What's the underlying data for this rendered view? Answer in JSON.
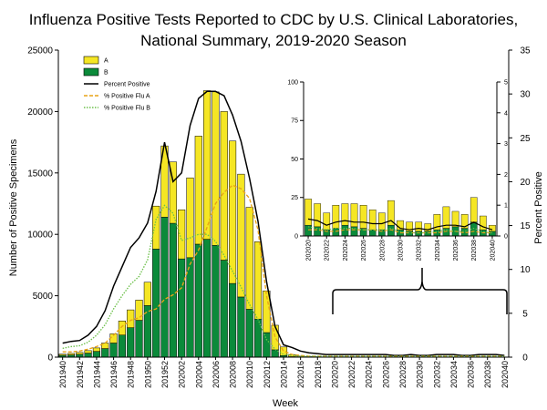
{
  "chart_data": [
    {
      "type": "bar",
      "stacked": true,
      "title_lines": [
        "Influenza Positive Tests Reported to CDC by U.S. Clinical Laboratories,",
        "National Summary,  2019-2020 Season"
      ],
      "xlabel": "Week",
      "ylabel": "Number of Positive Specimens",
      "y2label": "Percent Positive",
      "ylim": [
        0,
        25000
      ],
      "y_ticks": [
        0,
        5000,
        10000,
        15000,
        20000,
        25000
      ],
      "y2lim": [
        0,
        35
      ],
      "y2_ticks": [
        0,
        5,
        10,
        15,
        20,
        25,
        30,
        35
      ],
      "legend_position": "top-left",
      "x_tick_labels": [
        "201940",
        "201942",
        "201944",
        "201946",
        "201948",
        "201950",
        "201952",
        "202002",
        "202004",
        "202006",
        "202008",
        "202010",
        "202012",
        "202014",
        "202016",
        "202018",
        "202020",
        "202022",
        "202024",
        "202026",
        "202028",
        "202030",
        "202032",
        "202034",
        "202036",
        "202038",
        "202040"
      ],
      "categories": [
        "201940",
        "201941",
        "201942",
        "201943",
        "201944",
        "201945",
        "201946",
        "201947",
        "201948",
        "201949",
        "201950",
        "201951",
        "201952",
        "202001",
        "202002",
        "202003",
        "202004",
        "202005",
        "202006",
        "202007",
        "202008",
        "202009",
        "202010",
        "202011",
        "202012",
        "202013",
        "202014",
        "202015",
        "202016",
        "202017",
        "202018",
        "202019",
        "202020",
        "202021",
        "202022",
        "202023",
        "202024",
        "202025",
        "202026",
        "202027",
        "202028",
        "202029",
        "202030",
        "202031",
        "202032",
        "202033",
        "202034",
        "202035",
        "202036",
        "202037",
        "202038",
        "202039",
        "202040"
      ],
      "series": [
        {
          "name": "B",
          "color": "#0b8a3a",
          "kind": "bar",
          "values": [
            150,
            180,
            230,
            330,
            470,
            700,
            1150,
            1800,
            2400,
            3000,
            4200,
            8800,
            11400,
            10900,
            8000,
            8100,
            9200,
            9600,
            9100,
            7900,
            6000,
            4900,
            3900,
            3100,
            2000,
            600,
            130,
            40,
            20,
            10,
            8,
            5,
            4,
            4,
            3,
            3,
            3,
            3,
            3,
            3,
            3,
            3,
            3,
            3,
            3,
            3,
            3,
            3,
            3,
            3,
            3,
            3,
            2
          ]
        },
        {
          "name": "A",
          "color": "#f5e624",
          "kind": "bar",
          "values": [
            100,
            120,
            150,
            200,
            280,
            450,
            750,
            1150,
            1450,
            1650,
            1900,
            3500,
            5800,
            5000,
            4000,
            6500,
            8800,
            12100,
            12500,
            12100,
            11600,
            10000,
            8300,
            6300,
            3400,
            2000,
            700,
            170,
            60,
            30,
            25,
            20,
            20,
            20,
            15,
            15,
            15,
            15,
            15,
            15,
            15,
            15,
            15,
            15,
            15,
            15,
            15,
            15,
            15,
            15,
            15,
            15,
            10
          ]
        },
        {
          "name": "Percent Positive",
          "color": "#000000",
          "kind": "line",
          "axis": "right",
          "values": [
            1.6,
            1.8,
            1.9,
            2.5,
            3.5,
            5.3,
            8.1,
            10.3,
            12.5,
            13.6,
            15.3,
            18.9,
            24.5,
            20.0,
            21.0,
            26.4,
            29.5,
            30.3,
            30.3,
            29.8,
            27.6,
            24.6,
            20.4,
            15.5,
            8.6,
            3.5,
            1.4,
            1.1,
            0.7,
            0.5,
            0.4,
            0.3,
            0.3,
            0.3,
            0.3,
            0.3,
            0.3,
            0.3,
            0.3,
            0.2,
            0.2,
            0.3,
            0.2,
            0.2,
            0.3,
            0.3,
            0.3,
            0.2,
            0.2,
            0.3,
            0.3,
            0.3,
            0.2
          ]
        },
        {
          "name": "% Positive Flu A",
          "color": "#e8a317",
          "kind": "line",
          "dash": "dashed",
          "axis": "right",
          "values": [
            0.6,
            0.6,
            0.7,
            0.9,
            1.2,
            1.6,
            2.5,
            3.5,
            4.2,
            4.5,
            5.2,
            5.5,
            6.6,
            7.1,
            7.9,
            10.6,
            12.2,
            14.8,
            17.5,
            18.8,
            19.6,
            19.2,
            18.1,
            14.5,
            7.0,
            2.3,
            0.7,
            0.3,
            0.2,
            0.1,
            0.1,
            0.1,
            0.1,
            0.1,
            0.1,
            0.1,
            0.1,
            0.1,
            0.1,
            0.1,
            0.1,
            0.1,
            0.1,
            0.1,
            0.1,
            0.1,
            0.1,
            0.1,
            0.1,
            0.1,
            0.1,
            0.1,
            0.1
          ]
        },
        {
          "name": "% Positive Flu B",
          "color": "#6cc04a",
          "kind": "line",
          "dash": "dotted",
          "axis": "right",
          "values": [
            1.0,
            1.2,
            1.3,
            1.7,
            2.5,
            3.7,
            5.5,
            7.0,
            8.3,
            9.2,
            11.1,
            15.7,
            17.3,
            16.4,
            13.3,
            13.6,
            14.0,
            14.0,
            13.2,
            11.6,
            9.8,
            8.0,
            6.0,
            4.3,
            2.0,
            0.9,
            0.3,
            0.2,
            0.1,
            0.1,
            0.1,
            0.1,
            0.1,
            0.1,
            0.1,
            0.1,
            0.1,
            0.1,
            0.1,
            0.1,
            0.1,
            0.1,
            0.1,
            0.1,
            0.1,
            0.1,
            0.1,
            0.1,
            0.1,
            0.1,
            0.1,
            0.1,
            0.1
          ]
        }
      ]
    },
    {
      "type": "bar",
      "stacked": true,
      "role": "inset zoom of weeks 202020-202040",
      "ylim": [
        0,
        100
      ],
      "y_ticks": [
        0,
        25,
        50,
        75,
        100
      ],
      "y2lim": [
        0,
        5
      ],
      "y2_ticks": [
        0,
        1,
        2,
        3,
        4,
        5
      ],
      "x_tick_labels": [
        "202020",
        "202022",
        "202024",
        "202026",
        "202028",
        "202030",
        "202032",
        "202034",
        "202036",
        "202038",
        "202040"
      ],
      "categories": [
        "202020",
        "202021",
        "202022",
        "202023",
        "202024",
        "202025",
        "202026",
        "202027",
        "202028",
        "202029",
        "202030",
        "202031",
        "202032",
        "202033",
        "202034",
        "202035",
        "202036",
        "202037",
        "202038",
        "202039",
        "202040"
      ],
      "series": [
        {
          "name": "B",
          "color": "#0b8a3a",
          "kind": "bar",
          "values": [
            7,
            6,
            4,
            5,
            7,
            6,
            5,
            4,
            4,
            7,
            4,
            3,
            3,
            3,
            4,
            5,
            6,
            5,
            9,
            4,
            3
          ]
        },
        {
          "name": "A",
          "color": "#f5e624",
          "kind": "bar",
          "values": [
            17,
            15,
            11,
            15,
            14,
            15,
            15,
            13,
            11,
            16,
            6,
            6,
            6,
            5,
            10,
            14,
            10,
            9,
            16,
            9,
            4
          ]
        },
        {
          "name": "Percent Positive",
          "color": "#000000",
          "kind": "line",
          "axis": "right",
          "values": [
            0.55,
            0.5,
            0.35,
            0.45,
            0.5,
            0.45,
            0.45,
            0.4,
            0.4,
            0.5,
            0.25,
            0.2,
            0.25,
            0.2,
            0.3,
            0.35,
            0.35,
            0.3,
            0.45,
            0.3,
            0.2
          ]
        },
        {
          "name": "% Positive Flu A",
          "color": "#e8a317",
          "kind": "line",
          "dash": "dashed",
          "axis": "right",
          "values": [
            0.2,
            0.2,
            0.15,
            0.15,
            0.2,
            0.2,
            0.2,
            0.2,
            0.15,
            0.2,
            0.1,
            0.1,
            0.1,
            0.1,
            0.1,
            0.15,
            0.15,
            0.1,
            0.15,
            0.1,
            0.1
          ]
        },
        {
          "name": "% Positive Flu B",
          "color": "#6cc04a",
          "kind": "line",
          "dash": "dotted",
          "axis": "right",
          "values": [
            0.3,
            0.25,
            0.2,
            0.25,
            0.25,
            0.25,
            0.2,
            0.2,
            0.2,
            0.25,
            0.15,
            0.1,
            0.1,
            0.1,
            0.15,
            0.2,
            0.15,
            0.15,
            0.25,
            0.15,
            0.1
          ]
        }
      ]
    }
  ]
}
